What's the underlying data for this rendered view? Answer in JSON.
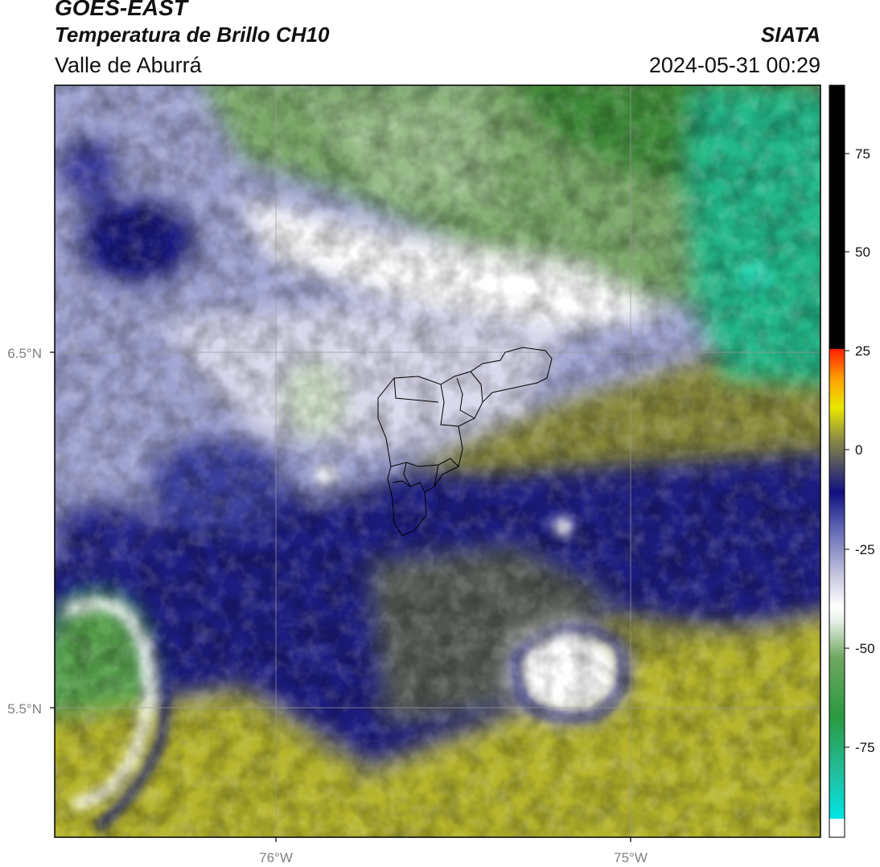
{
  "header": {
    "satellite": "GOES-EAST",
    "product": "Temperatura de Brillo CH10",
    "region": "Valle de Aburrá",
    "organization": "SIATA",
    "datetime": "2024-05-31 00:29"
  },
  "map": {
    "lat_ticks": [
      "6.5°N",
      "5.5°N"
    ],
    "lon_ticks": [
      "76°W",
      "75°W"
    ]
  },
  "colorbar": {
    "ticks": [
      "75",
      "50",
      "25",
      "0",
      "-25",
      "-50",
      "-75"
    ]
  }
}
